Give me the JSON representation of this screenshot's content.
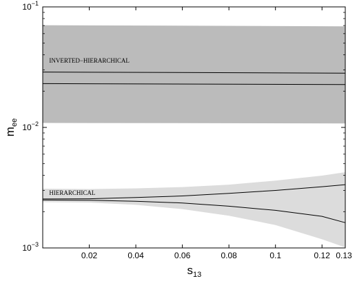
{
  "chart_data": {
    "type": "area",
    "title": "",
    "xlabel": "s",
    "xlabel_sub": "13",
    "ylabel": "m",
    "ylabel_sub": "ee",
    "xlim": [
      0.0,
      0.13
    ],
    "ylim": [
      0.001,
      0.1
    ],
    "yscale": "log",
    "grid": false,
    "legend": "none",
    "x_ticks": [
      0.02,
      0.04,
      0.06,
      0.08,
      0.1,
      0.12,
      0.13
    ],
    "x_tick_labels": [
      "0.02",
      "0.04",
      "0.06",
      "0.08",
      "0.1",
      "0.12",
      "0.13"
    ],
    "y_ticks": [
      {
        "value": 0.001,
        "base": "10",
        "exp": "−3"
      },
      {
        "value": 0.01,
        "base": "10",
        "exp": "−2"
      },
      {
        "value": 0.1,
        "base": "10",
        "exp": "−1"
      }
    ],
    "bands": [
      {
        "label": "INVERTED−HIERARCHICAL",
        "color": "#bbbbbb",
        "x": [
          0.0,
          0.13
        ],
        "lower": [
          0.0109,
          0.0108
        ],
        "upper": [
          0.0705,
          0.069
        ]
      },
      {
        "label": "HIERARCHICAL",
        "color": "#dcdcdc",
        "x": [
          0.0,
          0.02,
          0.04,
          0.06,
          0.08,
          0.1,
          0.12,
          0.13
        ],
        "lower": [
          0.0024,
          0.00238,
          0.00228,
          0.0021,
          0.00185,
          0.00155,
          0.00118,
          0.00101
        ],
        "upper": [
          0.0031,
          0.00308,
          0.00312,
          0.0032,
          0.00335,
          0.00362,
          0.00398,
          0.00425
        ]
      }
    ],
    "series": [
      {
        "x": [
          0.0,
          0.13
        ],
        "values": [
          0.0288,
          0.0282
        ]
      },
      {
        "x": [
          0.0,
          0.13
        ],
        "values": [
          0.0231,
          0.0227
        ]
      },
      {
        "x": [
          0.0,
          0.02,
          0.04,
          0.06,
          0.08,
          0.1,
          0.12,
          0.13
        ],
        "values": [
          0.00255,
          0.00256,
          0.00262,
          0.0027,
          0.00284,
          0.003,
          0.00322,
          0.00335
        ]
      },
      {
        "x": [
          0.0,
          0.02,
          0.04,
          0.06,
          0.08,
          0.1,
          0.12,
          0.13
        ],
        "values": [
          0.0025,
          0.00249,
          0.00244,
          0.00236,
          0.00222,
          0.00205,
          0.00183,
          0.00162
        ]
      }
    ],
    "annotations": [
      {
        "text": "INVERTED−HIERARCHICAL",
        "x": 0.001,
        "y": 0.0345
      },
      {
        "text": "HIERARCHICAL",
        "x": 0.001,
        "y": 0.00275
      }
    ]
  }
}
